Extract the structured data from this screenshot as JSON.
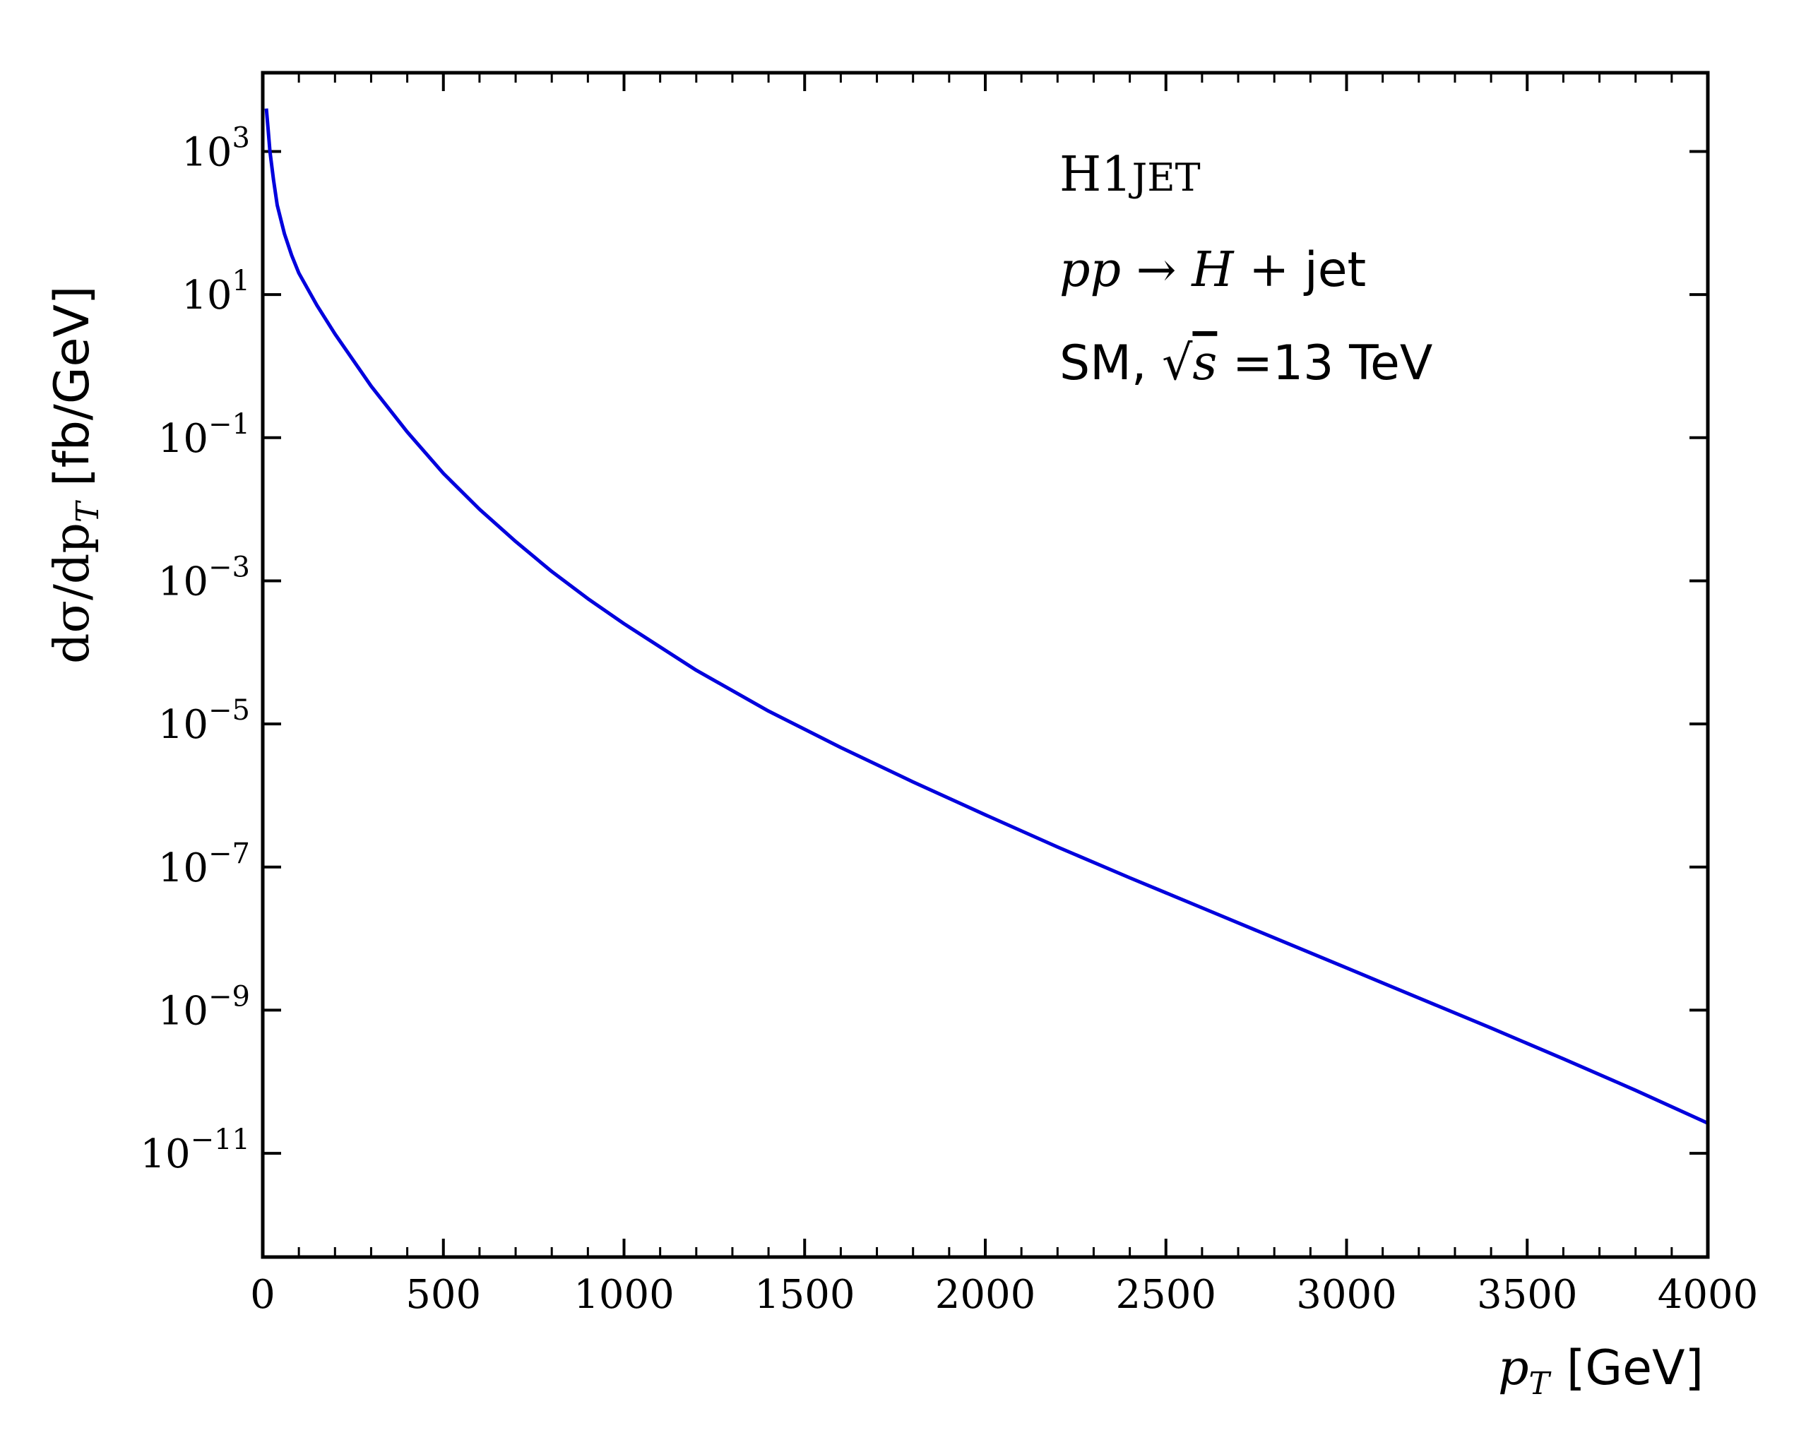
{
  "chart_data": {
    "type": "line",
    "title": "",
    "xlabel": "p_T [GeV]",
    "ylabel": "dσ/dp_T [fb/GeV]",
    "xscale": "linear",
    "yscale": "log",
    "xlim": [
      0,
      4000
    ],
    "ylim_exp": [
      -12.45,
      4.1
    ],
    "x_ticks": [
      0,
      500,
      1000,
      1500,
      2000,
      2500,
      3000,
      3500,
      4000
    ],
    "x_tick_labels": [
      "0",
      "500",
      "1000",
      "1500",
      "2000",
      "2500",
      "3000",
      "3500",
      "4000"
    ],
    "y_tick_exponents": [
      3,
      1,
      -1,
      -3,
      -5,
      -7,
      -9,
      -11
    ],
    "y_tick_labels": [
      "10",
      "10",
      "10",
      "10",
      "10",
      "10",
      "10",
      "10"
    ],
    "y_tick_sups": [
      "3",
      "1",
      "−1",
      "−3",
      "−5",
      "−7",
      "−9",
      "−11"
    ],
    "grid": false,
    "line_color": "#0000dd",
    "annotations": [
      {
        "parts": [
          "H1",
          "JET"
        ]
      },
      {
        "parts": [
          "pp",
          " → ",
          "H",
          " + ",
          "jet"
        ]
      },
      {
        "parts": [
          "SM, ",
          "√",
          "s",
          " =13 TeV"
        ]
      }
    ],
    "xlabel_parts": [
      "p",
      "T",
      "[GeV]"
    ],
    "ylabel_parts": [
      "dσ/dp",
      "T",
      "[fb/GeV]"
    ],
    "series": [
      {
        "name": "pp → H + jet",
        "x": [
          10,
          15,
          20,
          30,
          40,
          60,
          80,
          100,
          150,
          200,
          300,
          400,
          500,
          600,
          700,
          800,
          900,
          1000,
          1200,
          1400,
          1600,
          1800,
          2000,
          2200,
          2400,
          2600,
          2800,
          3000,
          3200,
          3400,
          3600,
          3800,
          4000
        ],
        "log10y": [
          3.6,
          3.3,
          3.0,
          2.6,
          2.25,
          1.85,
          1.55,
          1.3,
          0.85,
          0.45,
          -0.28,
          -0.92,
          -1.5,
          -2.0,
          -2.45,
          -2.87,
          -3.25,
          -3.6,
          -4.25,
          -4.82,
          -5.33,
          -5.81,
          -6.27,
          -6.72,
          -7.15,
          -7.57,
          -7.99,
          -8.41,
          -8.83,
          -9.25,
          -9.68,
          -10.12,
          -10.58
        ]
      }
    ]
  }
}
